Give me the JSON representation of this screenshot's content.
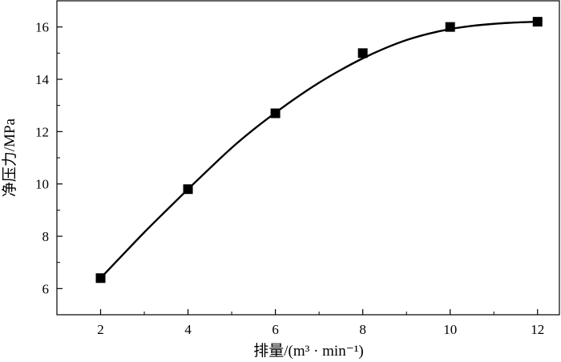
{
  "chart_data": {
    "type": "line",
    "xlabel": "排量/(m³ · min⁻¹)",
    "ylabel": "净压力/MPa",
    "xlim": [
      1,
      12.5
    ],
    "ylim": [
      5,
      17
    ],
    "x_ticks": [
      2,
      4,
      6,
      8,
      10,
      12
    ],
    "y_ticks": [
      6,
      8,
      10,
      12,
      14,
      16
    ],
    "x_minor_ticks": [
      3,
      5,
      7,
      9,
      11
    ],
    "y_minor_ticks": [
      7,
      9,
      11,
      13,
      15
    ],
    "grid": false,
    "legend": "none",
    "series": [
      {
        "marker": "square",
        "color": "#000000",
        "x": [
          2,
          4,
          6,
          8,
          10,
          12
        ],
        "y": [
          6.4,
          9.8,
          12.7,
          15.0,
          16.0,
          16.2
        ],
        "fit_curve": [
          [
            2,
            6.4
          ],
          [
            2.5,
            7.28
          ],
          [
            3,
            8.15
          ],
          [
            3.5,
            8.98
          ],
          [
            4,
            9.8
          ],
          [
            4.5,
            10.6
          ],
          [
            5,
            11.38
          ],
          [
            5.5,
            12.08
          ],
          [
            6,
            12.72
          ],
          [
            6.5,
            13.32
          ],
          [
            7,
            13.87
          ],
          [
            7.5,
            14.36
          ],
          [
            8,
            14.8
          ],
          [
            8.5,
            15.18
          ],
          [
            9,
            15.5
          ],
          [
            9.5,
            15.74
          ],
          [
            10,
            15.92
          ],
          [
            10.5,
            16.04
          ],
          [
            11,
            16.12
          ],
          [
            11.5,
            16.17
          ],
          [
            12,
            16.2
          ]
        ]
      }
    ]
  }
}
